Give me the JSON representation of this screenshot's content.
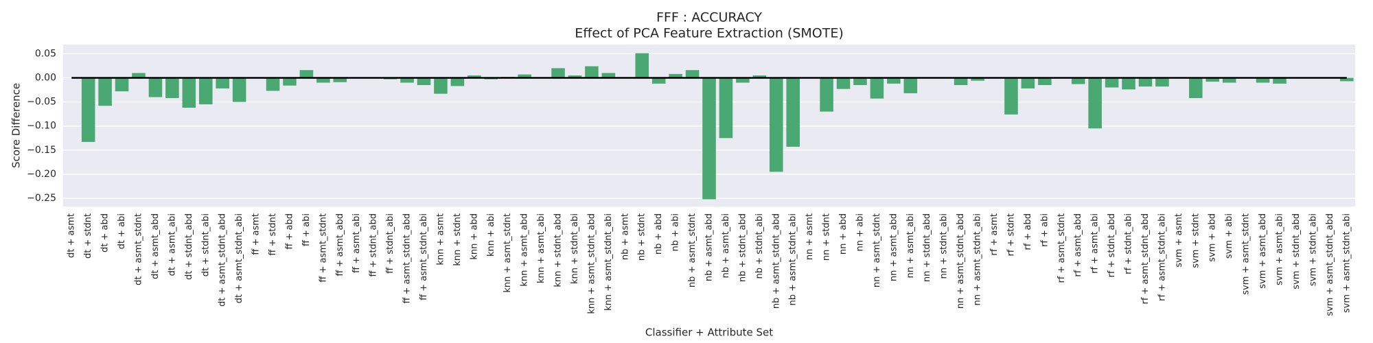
{
  "chart_data": {
    "type": "bar",
    "title": "FFF : ACCURACY",
    "subtitle": "Effect of PCA Feature Extraction (SMOTE)",
    "x_label": "Classifier + Attribute Set",
    "y_label": "Score Difference",
    "color": "#4aa872",
    "grid": true,
    "categories": [
      "dt + asmt",
      "dt + stdnt",
      "dt + abd",
      "dt + abi",
      "dt + asmt_stdnt",
      "dt + asmt_abd",
      "dt + asmt_abi",
      "dt + stdnt_abd",
      "dt + stdnt_abi",
      "dt + asmt_stdnt_abd",
      "dt + asmt_stdnt_abi",
      "ff + asmt",
      "ff + stdnt",
      "ff + abd",
      "ff + abi",
      "ff + asmt_stdnt",
      "ff + asmt_abd",
      "ff + asmt_abi",
      "ff + stdnt_abd",
      "ff + stdnt_abi",
      "ff + asmt_stdnt_abd",
      "ff + asmt_stdnt_abi",
      "knn + asmt",
      "knn + stdnt",
      "knn + abd",
      "knn + abi",
      "knn + asmt_stdnt",
      "knn + asmt_abd",
      "knn + asmt_abi",
      "knn + stdnt_abd",
      "knn + stdnt_abi",
      "knn + asmt_stdnt_abd",
      "knn + asmt_stdnt_abi",
      "nb + asmt",
      "nb + stdnt",
      "nb + abd",
      "nb + abi",
      "nb + asmt_stdnt",
      "nb + asmt_abd",
      "nb + asmt_abi",
      "nb + stdnt_abd",
      "nb + stdnt_abi",
      "nb + asmt_stdnt_abd",
      "nb + asmt_stdnt_abi",
      "nn + asmt",
      "nn + stdnt",
      "nn + abd",
      "nn + abi",
      "nn + asmt_stdnt",
      "nn + asmt_abd",
      "nn + asmt_abi",
      "nn + stdnt_abd",
      "nn + stdnt_abi",
      "nn + asmt_stdnt_abd",
      "nn + asmt_stdnt_abi",
      "rf + asmt",
      "rf + stdnt",
      "rf + abd",
      "rf + abi",
      "rf + asmt_stdnt",
      "rf + asmt_abd",
      "rf + asmt_abi",
      "rf + stdnt_abd",
      "rf + stdnt_abi",
      "rf + asmt_stdnt_abd",
      "rf + asmt_stdnt_abi",
      "svm + asmt",
      "svm + stdnt",
      "svm + abd",
      "svm + abi",
      "svm + asmt_stdnt",
      "svm + asmt_abd",
      "svm + asmt_abi",
      "svm + stdnt_abd",
      "svm + stdnt_abi",
      "svm + asmt_stdnt_abd",
      "svm + asmt_stdnt_abi"
    ],
    "values": [
      0,
      -0.133,
      -0.058,
      -0.028,
      0.01,
      -0.04,
      -0.042,
      -0.062,
      -0.055,
      -0.022,
      -0.05,
      0,
      -0.027,
      -0.016,
      0.016,
      -0.01,
      -0.009,
      0,
      0,
      -0.003,
      -0.01,
      -0.015,
      -0.033,
      -0.017,
      0.005,
      -0.003,
      0.002,
      0.007,
      0,
      0.02,
      0.005,
      0.024,
      0.01,
      0,
      0.051,
      -0.012,
      0.008,
      0.016,
      -0.252,
      -0.125,
      -0.01,
      0.005,
      -0.195,
      -0.143,
      0,
      -0.07,
      -0.023,
      -0.015,
      -0.043,
      -0.012,
      -0.032,
      0,
      0,
      -0.015,
      -0.006,
      0,
      -0.076,
      -0.022,
      -0.015,
      0,
      -0.013,
      -0.105,
      -0.02,
      -0.024,
      -0.018,
      -0.018,
      0,
      -0.042,
      -0.008,
      -0.01,
      0,
      -0.01,
      -0.012,
      0,
      0,
      0,
      -0.007
    ],
    "ylim": [
      -0.267,
      0.069
    ],
    "yticks": [
      0.05,
      {
        "value": 0,
        "label": "0.00"
      },
      {
        "value": -0.05,
        "label": "−0.05"
      },
      {
        "value": -0.1,
        "label": "−0.10"
      },
      {
        "value": -0.15,
        "label": "−0.15"
      },
      {
        "value": -0.2,
        "label": "−0.20"
      },
      {
        "value": -0.25,
        "label": "−0.25"
      }
    ]
  }
}
